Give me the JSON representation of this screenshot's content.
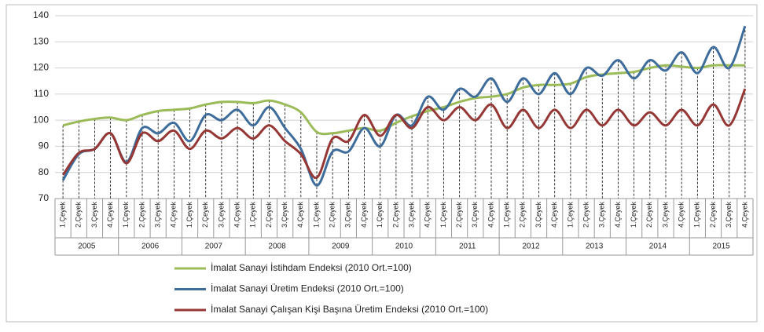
{
  "chart_data": {
    "type": "line",
    "categories": [
      "1.Çeyek",
      "2.Çeyek",
      "3.Çeyek",
      "4.Çeyek",
      "1.Çeyek",
      "2.Çeyek",
      "3.Çeyek",
      "4.Çeyek",
      "1.Çeyek",
      "2.Çeyek",
      "3.Çeyek",
      "4.Çeyek",
      "1.Çeyek",
      "2.Çeyek",
      "3.Çeyek",
      "4.Çeyek",
      "1.Çeyek",
      "2.Çeyek",
      "3.Çeyek",
      "4.Çeyek",
      "1.Çeyek",
      "2.Çeyek",
      "3.Çeyek",
      "4.Çeyek",
      "1.Çeyek",
      "2.Çeyek",
      "3.Çeyek",
      "4.Çeyek",
      "1.Çeyek",
      "2.Çeyek",
      "3.Çeyek",
      "4.Çeyek",
      "1.Çeyek",
      "2.Çeyek",
      "3.Çeyek",
      "4.Çeyek",
      "1.Çeyek",
      "2.Çeyek",
      "3.Çeyek",
      "4.Çeyek",
      "1.Çeyek",
      "2.Çeyek",
      "3.Çeyek",
      "4.Çeyek"
    ],
    "groups": [
      "2005",
      "2006",
      "2007",
      "2008",
      "2009",
      "2010",
      "2011",
      "2012",
      "2013",
      "2014",
      "2015"
    ],
    "series": [
      {
        "name": "İmalat Sanayi İstihdam Endeksi (2010 Ort.=100)",
        "color": "#9bbb59",
        "values": [
          98,
          99.5,
          100.5,
          101,
          100,
          102,
          103.5,
          104,
          104.5,
          106,
          107,
          107,
          106.5,
          107.5,
          106,
          103,
          95.5,
          95,
          96,
          97,
          96,
          99,
          101.5,
          103.5,
          105,
          107,
          108.5,
          109,
          110,
          112.5,
          113.5,
          113.5,
          114,
          116.5,
          117.5,
          118,
          118.5,
          120,
          121,
          120.5,
          120,
          121,
          121,
          121
        ]
      },
      {
        "name": "İmalat Sanayi  Üretim Endeksi (2010 Ort.=100)",
        "color": "#3f6d9b",
        "values": [
          77,
          87,
          89,
          95,
          84,
          97,
          95,
          99,
          92,
          102,
          100,
          104,
          98,
          105,
          97,
          89,
          75,
          88,
          88,
          97,
          90,
          102,
          98,
          109,
          104,
          112,
          109,
          116,
          107,
          116,
          110,
          118,
          110,
          120,
          117,
          123,
          116,
          123,
          119,
          126,
          118,
          128,
          120,
          136
        ]
      },
      {
        "name": "İmalat Sanayi Çalışan Kişi Başına Üretim Endeksi (2010 Ort.=100)",
        "color": "#953735",
        "values": [
          79,
          87.5,
          89,
          95,
          83.5,
          95,
          92,
          96,
          89,
          96,
          93,
          97,
          93,
          98,
          92,
          87,
          78,
          93,
          92,
          102,
          94,
          102,
          97,
          105,
          100,
          105,
          100,
          106,
          97,
          104,
          97,
          104,
          97,
          104,
          98,
          104,
          98,
          103,
          98,
          104,
          98,
          106,
          98,
          112
        ]
      }
    ],
    "ylim": [
      70,
      140
    ],
    "yticks": [
      70,
      80,
      90,
      100,
      110,
      120,
      130,
      140
    ],
    "grid": true
  }
}
